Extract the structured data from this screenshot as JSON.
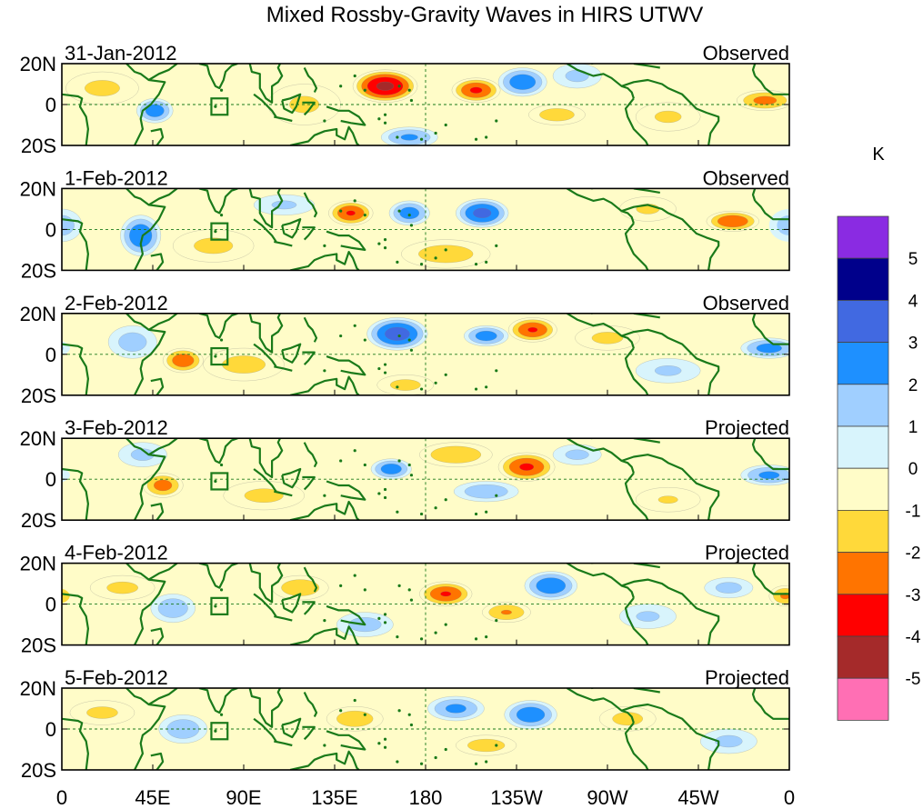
{
  "chart_data": {
    "type": "heatmap",
    "title": "Mixed Rossby-Gravity Waves in HIRS UTWV",
    "units": "K",
    "x_tick_labels": [
      "0",
      "45E",
      "90E",
      "135E",
      "180",
      "135W",
      "90W",
      "45W",
      "0"
    ],
    "x_tick_lon": [
      0,
      45,
      90,
      135,
      180,
      225,
      270,
      315,
      360
    ],
    "y_tick_labels": [
      "20N",
      "0",
      "20S"
    ],
    "y_tick_lat": [
      20,
      0,
      -20
    ],
    "xlim": [
      0,
      360
    ],
    "ylim": [
      -20,
      20
    ],
    "dashed_reference": {
      "equator_lat": 0,
      "dateline_lon": 180
    },
    "box_marker": {
      "lon_range": [
        74,
        82
      ],
      "lat_range": [
        -5,
        3
      ]
    },
    "colorbar": {
      "levels": [
        -5,
        -4,
        -3,
        -2,
        -1,
        0,
        1,
        2,
        3,
        4,
        5
      ],
      "level_labels": [
        "5",
        "4",
        "3",
        "2",
        "1",
        "0",
        "-1",
        "-2",
        "-3",
        "-4",
        "-5"
      ],
      "colors": [
        "#8a2be2",
        "#00008b",
        "#4169e1",
        "#1e90ff",
        "#a0cfff",
        "#d8f4fc",
        "#fffcc8",
        "#ffd93a",
        "#ff7400",
        "#ff0000",
        "#a52a2a",
        "#ff6fb4"
      ]
    },
    "panels": [
      {
        "date": "31-Jan-2012",
        "status": "Observed",
        "features": [
          {
            "lon": 160,
            "lat": 9,
            "peak": -4.3,
            "rlon": 16,
            "rlat": 8
          },
          {
            "lon": 205,
            "lat": 7,
            "peak": -3.2,
            "rlon": 12,
            "rlat": 6
          },
          {
            "lon": 228,
            "lat": 11,
            "peak": 2.8,
            "rlon": 12,
            "rlat": 7
          },
          {
            "lon": 46,
            "lat": -3,
            "peak": 2.7,
            "rlon": 9,
            "rlat": 6
          },
          {
            "lon": 172,
            "lat": -16,
            "peak": 2.2,
            "rlon": 14,
            "rlat": 5
          },
          {
            "lon": 348,
            "lat": 2,
            "peak": -2.4,
            "rlon": 14,
            "rlat": 5
          },
          {
            "lon": 20,
            "lat": 8,
            "peak": -1.3,
            "rlon": 18,
            "rlat": 8
          },
          {
            "lon": 120,
            "lat": 0,
            "peak": -1.2,
            "rlon": 18,
            "rlat": 10
          },
          {
            "lon": 245,
            "lat": -5,
            "peak": -1.6,
            "rlon": 14,
            "rlat": 5
          },
          {
            "lon": 255,
            "lat": 14,
            "peak": 1.3,
            "rlon": 12,
            "rlat": 6
          },
          {
            "lon": 300,
            "lat": -6,
            "peak": -1.2,
            "rlon": 16,
            "rlat": 7
          }
        ]
      },
      {
        "date": "1-Feb-2012",
        "status": "Observed",
        "features": [
          {
            "lon": 39,
            "lat": -3,
            "peak": 2.9,
            "rlon": 10,
            "rlat": 10
          },
          {
            "lon": 143,
            "lat": 8,
            "peak": -3.1,
            "rlon": 11,
            "rlat": 6
          },
          {
            "lon": 172,
            "lat": 8,
            "peak": 2.6,
            "rlon": 10,
            "rlat": 6
          },
          {
            "lon": 208,
            "lat": 8,
            "peak": 3.4,
            "rlon": 13,
            "rlat": 7
          },
          {
            "lon": 332,
            "lat": 4,
            "peak": -3.0,
            "rlon": 13,
            "rlat": 5
          },
          {
            "lon": 0,
            "lat": 2,
            "peak": 1.6,
            "rlon": 10,
            "rlat": 8
          },
          {
            "lon": 75,
            "lat": -8,
            "peak": -1.3,
            "rlon": 20,
            "rlat": 8
          },
          {
            "lon": 190,
            "lat": -12,
            "peak": -1.6,
            "rlon": 22,
            "rlat": 7
          },
          {
            "lon": 290,
            "lat": 10,
            "peak": -1.2,
            "rlon": 14,
            "rlat": 6
          },
          {
            "lon": 110,
            "lat": 12,
            "peak": 1.2,
            "rlon": 15,
            "rlat": 5
          }
        ]
      },
      {
        "date": "2-Feb-2012",
        "status": "Observed",
        "features": [
          {
            "lon": 166,
            "lat": 10,
            "peak": 3.6,
            "rlon": 15,
            "rlat": 8
          },
          {
            "lon": 233,
            "lat": 12,
            "peak": -3.1,
            "rlon": 12,
            "rlat": 6
          },
          {
            "lon": 210,
            "lat": 9,
            "peak": 2.6,
            "rlon": 11,
            "rlat": 5
          },
          {
            "lon": 60,
            "lat": -3,
            "peak": -2.8,
            "rlon": 10,
            "rlat": 6
          },
          {
            "lon": 350,
            "lat": 3,
            "peak": 2.5,
            "rlon": 14,
            "rlat": 5
          },
          {
            "lon": 35,
            "lat": 6,
            "peak": 1.5,
            "rlon": 12,
            "rlat": 8
          },
          {
            "lon": 90,
            "lat": -5,
            "peak": -1.4,
            "rlon": 20,
            "rlat": 8
          },
          {
            "lon": 170,
            "lat": -15,
            "peak": -1.4,
            "rlon": 14,
            "rlat": 5
          },
          {
            "lon": 270,
            "lat": 8,
            "peak": -1.3,
            "rlon": 16,
            "rlat": 6
          },
          {
            "lon": 300,
            "lat": -8,
            "peak": 1.2,
            "rlon": 16,
            "rlat": 6
          }
        ]
      },
      {
        "date": "3-Feb-2012",
        "status": "Projected",
        "features": [
          {
            "lon": 230,
            "lat": 6,
            "peak": -3.2,
            "rlon": 14,
            "rlat": 7
          },
          {
            "lon": 163,
            "lat": 5,
            "peak": 2.7,
            "rlon": 10,
            "rlat": 5
          },
          {
            "lon": 195,
            "lat": 12,
            "peak": -1.9,
            "rlon": 18,
            "rlat": 6
          },
          {
            "lon": 50,
            "lat": -3,
            "peak": -2.5,
            "rlon": 10,
            "rlat": 6
          },
          {
            "lon": 210,
            "lat": -6,
            "peak": 1.8,
            "rlon": 16,
            "rlat": 5
          },
          {
            "lon": 350,
            "lat": 2,
            "peak": 2.3,
            "rlon": 14,
            "rlat": 5
          },
          {
            "lon": 40,
            "lat": 12,
            "peak": 1.3,
            "rlon": 12,
            "rlat": 6
          },
          {
            "lon": 100,
            "lat": -8,
            "peak": -1.3,
            "rlon": 20,
            "rlat": 7
          },
          {
            "lon": 255,
            "lat": 12,
            "peak": 1.3,
            "rlon": 12,
            "rlat": 5
          },
          {
            "lon": 300,
            "lat": -10,
            "peak": -1.1,
            "rlon": 16,
            "rlat": 6
          }
        ]
      },
      {
        "date": "4-Feb-2012",
        "status": "Projected",
        "features": [
          {
            "lon": 242,
            "lat": 9,
            "peak": 2.9,
            "rlon": 13,
            "rlat": 7
          },
          {
            "lon": 190,
            "lat": 5,
            "peak": -3.1,
            "rlon": 13,
            "rlat": 6
          },
          {
            "lon": 118,
            "lat": 8,
            "peak": -1.8,
            "rlon": 14,
            "rlat": 6
          },
          {
            "lon": 55,
            "lat": -2,
            "peak": 1.8,
            "rlon": 11,
            "rlat": 7
          },
          {
            "lon": 150,
            "lat": -10,
            "peak": 1.5,
            "rlon": 14,
            "rlat": 6
          },
          {
            "lon": 220,
            "lat": -4,
            "peak": -2.1,
            "rlon": 12,
            "rlat": 5
          },
          {
            "lon": 358,
            "lat": 4,
            "peak": -2.2,
            "rlon": 8,
            "rlat": 5
          },
          {
            "lon": 30,
            "lat": 8,
            "peak": -1.3,
            "rlon": 16,
            "rlat": 6
          },
          {
            "lon": 290,
            "lat": -6,
            "peak": 1.2,
            "rlon": 14,
            "rlat": 6
          },
          {
            "lon": 330,
            "lat": 8,
            "peak": 1.4,
            "rlon": 12,
            "rlat": 5
          }
        ]
      },
      {
        "date": "5-Feb-2012",
        "status": "Projected",
        "features": [
          {
            "lon": 232,
            "lat": 7,
            "peak": 2.8,
            "rlon": 13,
            "rlat": 7
          },
          {
            "lon": 195,
            "lat": 10,
            "peak": 2.3,
            "rlon": 14,
            "rlat": 6
          },
          {
            "lon": 60,
            "lat": 0,
            "peak": 1.8,
            "rlon": 12,
            "rlat": 7
          },
          {
            "lon": 145,
            "lat": 5,
            "peak": -1.7,
            "rlon": 14,
            "rlat": 6
          },
          {
            "lon": 210,
            "lat": -8,
            "peak": -1.6,
            "rlon": 15,
            "rlat": 5
          },
          {
            "lon": 20,
            "lat": 8,
            "peak": -1.3,
            "rlon": 16,
            "rlat": 6
          },
          {
            "lon": 280,
            "lat": 5,
            "peak": -1.4,
            "rlon": 14,
            "rlat": 6
          },
          {
            "lon": 330,
            "lat": -6,
            "peak": 1.3,
            "rlon": 14,
            "rlat": 6
          }
        ]
      }
    ]
  }
}
